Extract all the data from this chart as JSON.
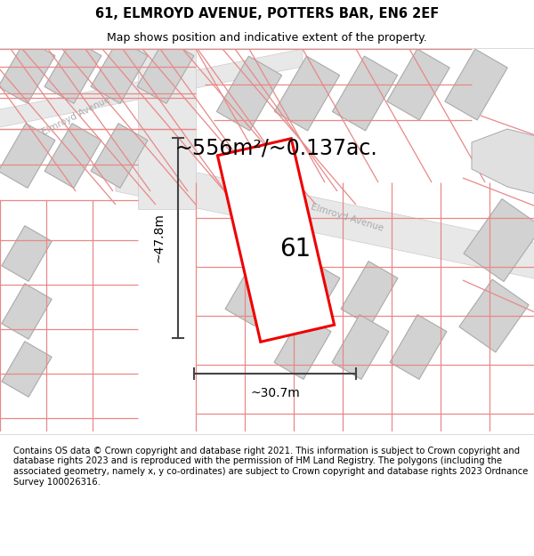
{
  "title": "61, ELMROYD AVENUE, POTTERS BAR, EN6 2EF",
  "subtitle": "Map shows position and indicative extent of the property.",
  "footer": "Contains OS data © Crown copyright and database right 2021. This information is subject to Crown copyright and database rights 2023 and is reproduced with the permission of HM Land Registry. The polygons (including the associated geometry, namely x, y co-ordinates) are subject to Crown copyright and database rights 2023 Ordnance Survey 100026316.",
  "area_label": "~556m²/~0.137ac.",
  "width_label": "~30.7m",
  "height_label": "~47.8m",
  "plot_number": "61",
  "map_bg": "#f7f7f7",
  "building_fill": "#d2d2d2",
  "building_stroke": "#aaaaaa",
  "parcel_color": "#e88888",
  "road_bg": "#eeeeee",
  "highlight_color": "#ee0000",
  "dim_line_color": "#444444",
  "road_label_color": "#aaaaaa",
  "title_fontsize": 10.5,
  "subtitle_fontsize": 9,
  "footer_fontsize": 7.2,
  "area_fontsize": 17,
  "dim_fontsize": 10,
  "plot_num_fontsize": 20
}
